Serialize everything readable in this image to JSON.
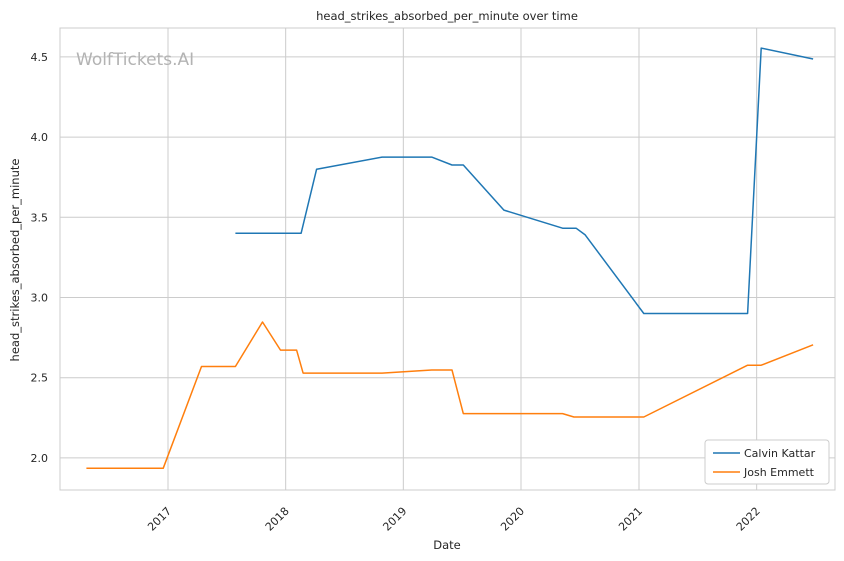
{
  "chart_data": {
    "type": "line",
    "title": "head_strikes_absorbed_per_minute over time",
    "xlabel": "Date",
    "ylabel": "head_strikes_absorbed_per_minute",
    "watermark": "WolfTickets.AI",
    "xlim": [
      "2016-02-01",
      "2022-09-01"
    ],
    "ylim": [
      1.8,
      4.68
    ],
    "x_ticks": [
      "2017-01-01",
      "2018-01-01",
      "2019-01-01",
      "2020-01-01",
      "2021-01-01",
      "2022-01-01"
    ],
    "x_tick_labels": [
      "2017",
      "2018",
      "2019",
      "2020",
      "2021",
      "2022"
    ],
    "y_ticks": [
      2.0,
      2.5,
      3.0,
      3.5,
      4.0,
      4.5
    ],
    "y_tick_labels": [
      "2.0",
      "2.5",
      "3.0",
      "3.5",
      "4.0",
      "4.5"
    ],
    "grid": true,
    "legend_position": "bottom-right",
    "series": [
      {
        "name": "Calvin Kattar",
        "color": "#1f77b4",
        "x": [
          "2017-07-29",
          "2018-02-18",
          "2018-04-07",
          "2018-10-27",
          "2019-03-30",
          "2019-06-01",
          "2019-07-06",
          "2019-11-09",
          "2020-05-09",
          "2020-06-20",
          "2020-07-18",
          "2021-01-16",
          "2021-12-04",
          "2022-01-15",
          "2022-06-25"
        ],
        "values": [
          3.4,
          3.4,
          3.8,
          3.875,
          3.875,
          3.826,
          3.826,
          3.545,
          3.432,
          3.432,
          3.39,
          2.9,
          2.9,
          4.555,
          4.487
        ]
      },
      {
        "name": "Josh Emmett",
        "color": "#ff7f0e",
        "x": [
          "2016-04-23",
          "2016-12-17",
          "2017-04-15",
          "2017-07-29",
          "2017-10-21",
          "2017-12-16",
          "2018-02-04",
          "2018-02-24",
          "2018-10-27",
          "2019-03-30",
          "2019-06-01",
          "2019-07-06",
          "2020-05-09",
          "2020-06-13",
          "2021-01-16",
          "2021-12-04",
          "2022-01-15",
          "2022-06-25"
        ],
        "values": [
          1.935,
          1.935,
          2.57,
          2.57,
          2.847,
          2.672,
          2.672,
          2.529,
          2.529,
          2.548,
          2.548,
          2.276,
          2.276,
          2.255,
          2.255,
          2.578,
          2.578,
          2.705
        ]
      }
    ]
  }
}
